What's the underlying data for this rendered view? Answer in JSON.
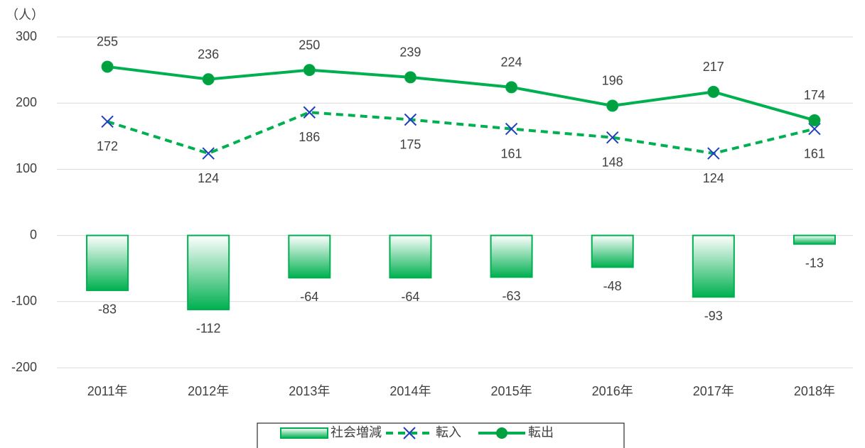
{
  "chart_data": {
    "type": "bar_line",
    "y_axis_label": "（人）",
    "categories": [
      "2011年",
      "2012年",
      "2013年",
      "2014年",
      "2015年",
      "2016年",
      "2017年",
      "2018年"
    ],
    "series": [
      {
        "name": "社会増減",
        "type": "bar",
        "color": "#00b050",
        "values": [
          -83,
          -112,
          -64,
          -64,
          -63,
          -48,
          -93,
          -13
        ]
      },
      {
        "name": "転入",
        "type": "line",
        "dashed": true,
        "marker": "x",
        "color": "#00b050",
        "marker_color": "#1f3fbf",
        "values": [
          172,
          124,
          186,
          175,
          161,
          148,
          124,
          161
        ]
      },
      {
        "name": "転出",
        "type": "line",
        "dashed": false,
        "marker": "circle",
        "color": "#00b050",
        "marker_color": "#00a040",
        "values": [
          255,
          236,
          250,
          239,
          224,
          196,
          217,
          174
        ]
      }
    ],
    "ylim": [
      -200,
      300
    ],
    "yticks": [
      -200,
      -100,
      0,
      100,
      200,
      300
    ],
    "grid": true,
    "legend": "bottom"
  }
}
